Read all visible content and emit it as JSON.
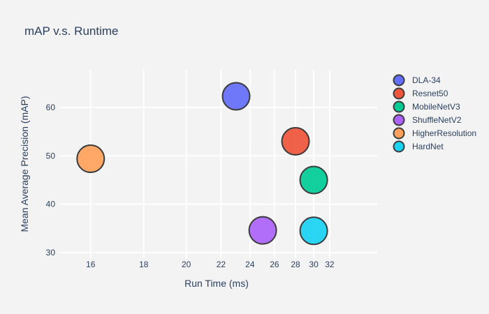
{
  "chart_data": {
    "type": "scatter",
    "title": "mAP v.s. Runtime",
    "xlabel": "Run Time (ms)",
    "ylabel": "Mean Average Precision (mAP)",
    "x_ticks": [
      16,
      18,
      20,
      22,
      24,
      26,
      28,
      30,
      32
    ],
    "y_ticks": [
      30,
      40,
      50,
      60
    ],
    "grid": true,
    "legend_position": "right",
    "series": [
      {
        "name": "DLA-34",
        "x": 23,
        "y": 62.3,
        "color": "#636efa"
      },
      {
        "name": "Resnet50",
        "x": 28,
        "y": 53.0,
        "color": "#ef553b"
      },
      {
        "name": "MobileNetV3",
        "x": 30,
        "y": 45.0,
        "color": "#00cc96"
      },
      {
        "name": "ShuffleNetV2",
        "x": 25,
        "y": 34.6,
        "color": "#ab63fa"
      },
      {
        "name": "HigherResolution",
        "x": 16,
        "y": 49.4,
        "color": "#ffa15a"
      },
      {
        "name": "HardNet",
        "x": 30,
        "y": 34.5,
        "color": "#19d3f3"
      }
    ]
  }
}
